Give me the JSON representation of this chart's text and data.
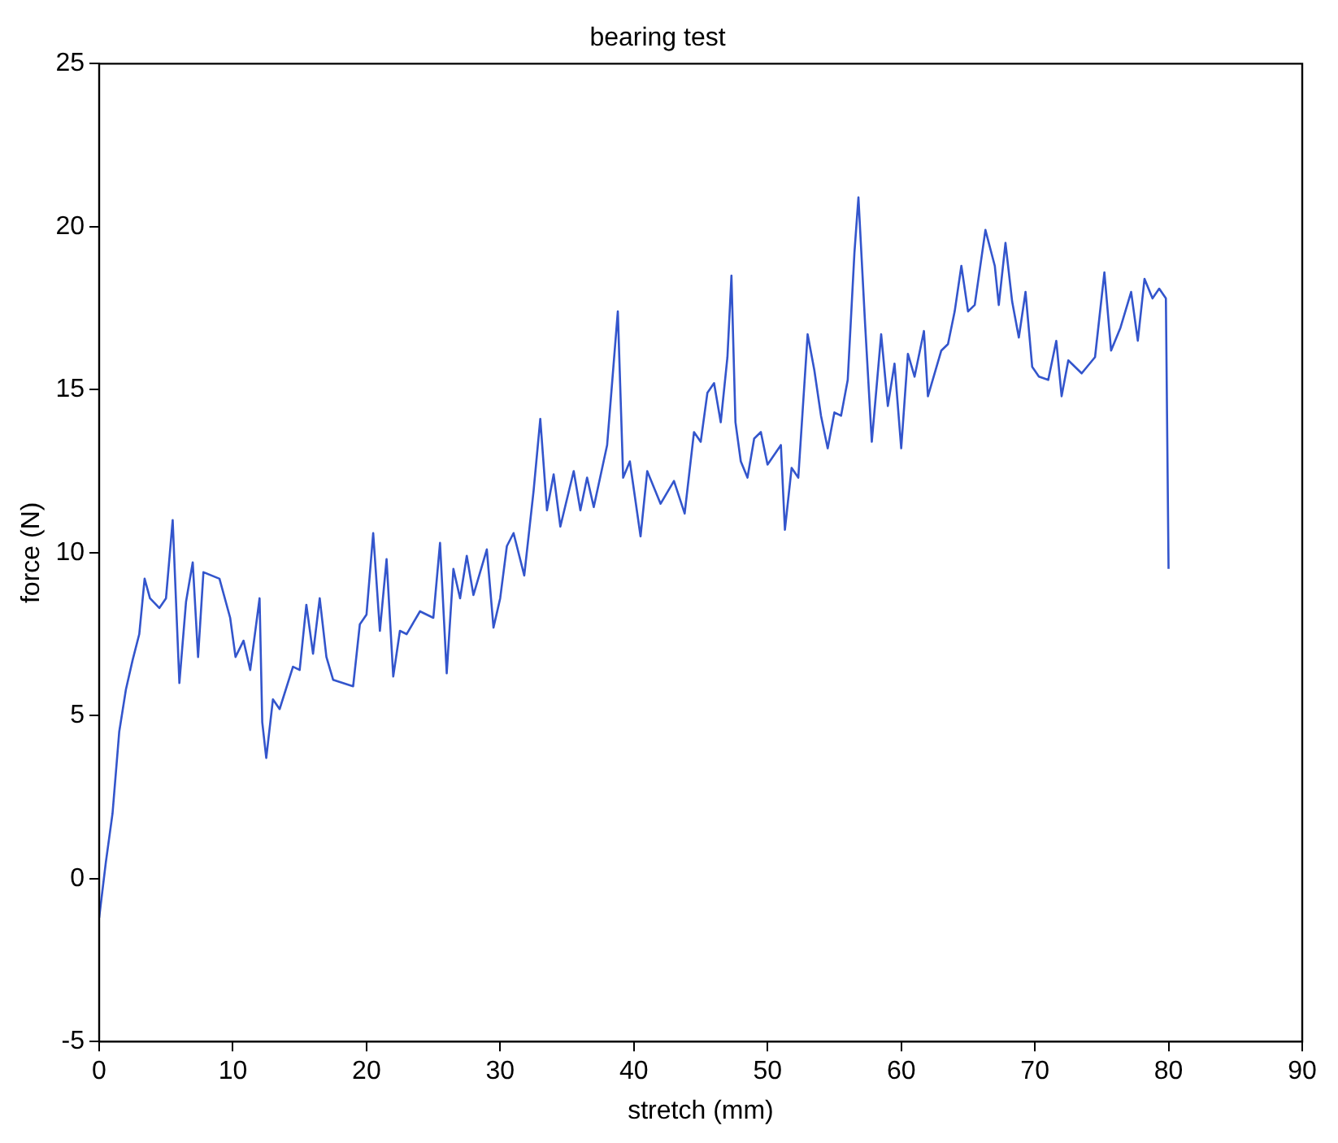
{
  "chart_data": {
    "type": "line",
    "title": "bearing test",
    "xlabel": "stretch (mm)",
    "ylabel": "force (N)",
    "xlim": [
      0,
      90
    ],
    "xticks": [
      0,
      10,
      20,
      30,
      40,
      50,
      60,
      70,
      80,
      90
    ],
    "ylim": [
      -5,
      25
    ],
    "yticks": [
      -5,
      0,
      5,
      10,
      15,
      20,
      25
    ],
    "grid": false,
    "legend": false,
    "marker": "none",
    "series": [
      {
        "color": "#3355cc",
        "x": [
          0,
          0.5,
          1,
          1.5,
          2,
          2.5,
          3,
          3.4,
          3.8,
          4.5,
          5,
          5.5,
          6,
          6.5,
          7,
          7.4,
          7.8,
          9,
          9.8,
          10.2,
          10.8,
          11.3,
          12,
          12.2,
          12.5,
          13,
          13.5,
          14.5,
          15,
          15.5,
          16,
          16.5,
          17,
          17.5,
          19,
          19.5,
          20,
          20.5,
          21,
          21.5,
          22,
          22.5,
          23,
          24,
          25,
          25.5,
          26,
          26.5,
          27,
          27.5,
          28,
          29,
          29.5,
          30,
          30.5,
          31,
          31.8,
          32.5,
          33,
          33.5,
          34,
          34.5,
          35.5,
          36,
          36.5,
          37,
          38,
          38.8,
          39.2,
          39.7,
          40.5,
          41,
          42,
          43,
          43.8,
          44.5,
          45,
          45.5,
          46,
          46.5,
          47,
          47.3,
          47.6,
          48,
          48.5,
          49,
          49.5,
          50,
          51,
          51.3,
          51.8,
          52.3,
          53,
          53.5,
          54,
          54.5,
          55,
          55.5,
          56,
          56.5,
          56.8,
          57.3,
          57.8,
          58.5,
          59,
          59.5,
          60,
          60.5,
          61,
          61.7,
          62,
          63,
          63.5,
          64,
          64.5,
          65,
          65.5,
          66.3,
          67,
          67.3,
          67.8,
          68.3,
          68.8,
          69.3,
          69.8,
          70.3,
          71,
          71.6,
          72,
          72.5,
          73.5,
          74.5,
          75.2,
          75.7,
          76.4,
          77.2,
          77.7,
          78.2,
          78.8,
          79.3,
          79.8,
          80
        ],
        "values": [
          -1.2,
          0.5,
          2,
          4.5,
          5.8,
          6.7,
          7.5,
          9.2,
          8.6,
          8.3,
          8.6,
          11,
          6,
          8.5,
          9.7,
          6.8,
          9.4,
          9.2,
          8,
          6.8,
          7.3,
          6.4,
          8.6,
          4.8,
          3.7,
          5.5,
          5.2,
          6.5,
          6.4,
          8.4,
          6.9,
          8.6,
          6.8,
          6.1,
          5.9,
          7.8,
          8.1,
          10.6,
          7.6,
          9.8,
          6.2,
          7.6,
          7.5,
          8.2,
          8,
          10.3,
          6.3,
          9.5,
          8.6,
          9.9,
          8.7,
          10.1,
          7.7,
          8.6,
          10.2,
          10.6,
          9.3,
          11.9,
          14.1,
          11.3,
          12.4,
          10.8,
          12.5,
          11.3,
          12.3,
          11.4,
          13.3,
          17.4,
          12.3,
          12.8,
          10.5,
          12.5,
          11.5,
          12.2,
          11.2,
          13.7,
          13.4,
          14.9,
          15.2,
          14,
          16,
          18.5,
          14,
          12.8,
          12.3,
          13.5,
          13.7,
          12.7,
          13.3,
          10.7,
          12.6,
          12.3,
          16.7,
          15.6,
          14.2,
          13.2,
          14.3,
          14.2,
          15.3,
          19.2,
          20.9,
          17,
          13.4,
          16.7,
          14.5,
          15.8,
          13.2,
          16.1,
          15.4,
          16.8,
          14.8,
          16.2,
          16.4,
          17.4,
          18.8,
          17.4,
          17.6,
          19.9,
          18.8,
          17.6,
          19.5,
          17.7,
          16.6,
          18,
          15.7,
          15.4,
          15.3,
          16.5,
          14.8,
          15.9,
          15.5,
          16,
          18.6,
          16.2,
          16.9,
          18,
          16.5,
          18.4,
          17.8,
          18.1,
          17.8,
          9.5
        ]
      }
    ]
  }
}
